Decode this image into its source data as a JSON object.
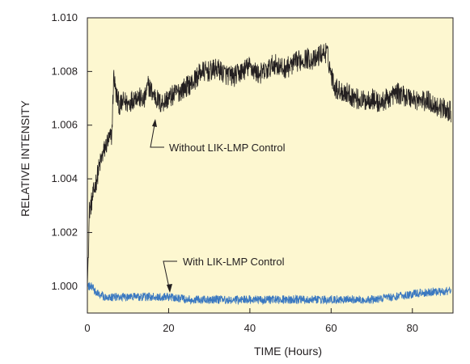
{
  "chart_data": {
    "type": "line",
    "xlabel": "TIME (Hours)",
    "ylabel": "RELATIVE INTENSITY",
    "xlim": [
      0,
      90
    ],
    "ylim": [
      0.999,
      1.01
    ],
    "x_ticks": [
      0,
      20,
      40,
      60,
      80
    ],
    "x_tick_labels": [
      "0",
      "20",
      "40",
      "60",
      "80"
    ],
    "y_ticks": [
      1.0,
      1.002,
      1.004,
      1.006,
      1.008,
      1.01
    ],
    "y_tick_labels": [
      "1.000",
      "1.002",
      "1.004",
      "1.006",
      "1.008",
      "1.010"
    ],
    "grid": false,
    "plot_background": "#fdf7d0",
    "series": [
      {
        "name": "Without LIK-LMP Control",
        "color": "#231f20",
        "x": [
          0,
          0.5,
          1,
          2,
          3,
          4,
          5,
          6,
          6.5,
          7,
          8,
          9,
          10,
          12,
          13,
          14,
          15,
          16,
          18,
          20,
          22,
          24,
          26,
          28,
          30,
          32,
          34,
          36,
          38,
          40,
          42,
          44,
          46,
          48,
          50,
          52,
          54,
          56,
          57,
          58,
          59,
          60,
          61,
          62,
          64,
          66,
          68,
          70,
          72,
          74,
          76,
          78,
          80,
          82,
          84,
          86,
          88,
          89.5
        ],
        "y": [
          1.0,
          1.0028,
          1.0031,
          1.0038,
          1.0045,
          1.005,
          1.0054,
          1.0056,
          1.0079,
          1.0072,
          1.0067,
          1.0069,
          1.0068,
          1.0071,
          1.007,
          1.0069,
          1.0075,
          1.0072,
          1.0068,
          1.007,
          1.0072,
          1.0074,
          1.0076,
          1.008,
          1.008,
          1.0081,
          1.0079,
          1.0078,
          1.008,
          1.0082,
          1.0079,
          1.008,
          1.0083,
          1.0081,
          1.0082,
          1.0084,
          1.0085,
          1.0084,
          1.0086,
          1.0087,
          1.0087,
          1.0079,
          1.0074,
          1.0073,
          1.0072,
          1.007,
          1.0069,
          1.007,
          1.0068,
          1.007,
          1.0072,
          1.0071,
          1.007,
          1.0069,
          1.0069,
          1.0067,
          1.0066,
          1.0065
        ]
      },
      {
        "name": "With LIK-LMP Control",
        "color": "#3a78c0",
        "x": [
          0,
          1,
          2,
          3,
          4,
          6,
          10,
          15,
          20,
          25,
          30,
          35,
          40,
          45,
          50,
          55,
          60,
          65,
          70,
          75,
          80,
          85,
          89.5
        ],
        "y": [
          1.0,
          1.0,
          0.9998,
          0.9997,
          0.9996,
          0.9996,
          0.9996,
          0.9996,
          0.9996,
          0.9995,
          0.9995,
          0.9995,
          0.9995,
          0.9995,
          0.9995,
          0.9995,
          0.9995,
          0.9995,
          0.9995,
          0.9996,
          0.9997,
          0.9998,
          0.9998
        ]
      }
    ],
    "annotations": [
      {
        "text": "Without LIK-LMP Control",
        "points_to": {
          "x": 15.5,
          "y": 1.0064
        }
      },
      {
        "text": "With LIK-LMP Control",
        "points_to": {
          "x": 20,
          "y": 0.9996
        }
      }
    ]
  }
}
